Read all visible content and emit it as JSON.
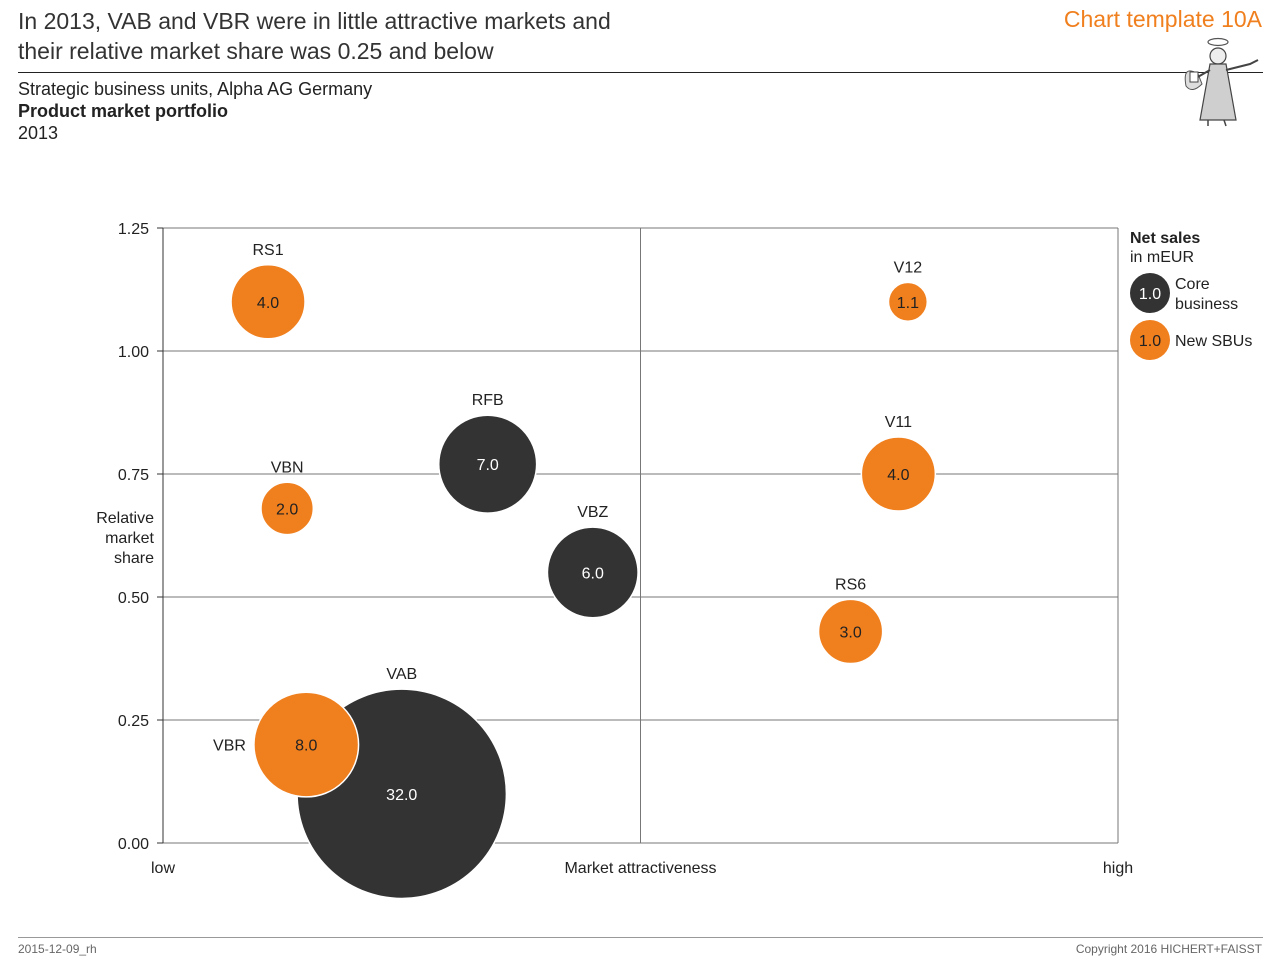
{
  "header": {
    "headline_line1": "In 2013, VAB and VBR were in little attractive markets and",
    "headline_line2": "their relative market share was 0.25 and below",
    "template_tag": "Chart template 10A"
  },
  "subtitle": {
    "line1": "Strategic business units, Alpha AG Germany",
    "line2": "Product market portfolio",
    "line3": "2013"
  },
  "colors": {
    "core": "#333333",
    "new": "#f07f1e"
  },
  "chart_data": {
    "type": "scatter",
    "xlabel": "Market attractiveness",
    "x_tick_labels": [
      "low",
      "high"
    ],
    "xlim": [
      0,
      1
    ],
    "ylabel": [
      "Relative",
      "market",
      "share"
    ],
    "ylim": [
      0,
      1.25
    ],
    "y_ticks": [
      "0.00",
      "0.25",
      "0.50",
      "0.75",
      "1.00",
      "1.25"
    ],
    "grid": true,
    "legend": {
      "title": "Net sales",
      "subtitle": "in mEUR",
      "sample_value": "1.0",
      "entries": [
        {
          "label_lines": [
            "Core",
            "business"
          ],
          "category": "core"
        },
        {
          "label_lines": [
            "New SBUs"
          ],
          "category": "new"
        }
      ]
    },
    "points": [
      {
        "name": "VAB",
        "x": 0.25,
        "y": 0.1,
        "size": 32.0,
        "label": "32.0",
        "category": "core"
      },
      {
        "name": "VBR",
        "x": 0.15,
        "y": 0.2,
        "size": 8.0,
        "label": "8.0",
        "category": "new"
      },
      {
        "name": "RS1",
        "x": 0.11,
        "y": 1.1,
        "size": 4.0,
        "label": "4.0",
        "category": "new"
      },
      {
        "name": "VBN",
        "x": 0.13,
        "y": 0.68,
        "size": 2.0,
        "label": "2.0",
        "category": "new"
      },
      {
        "name": "RFB",
        "x": 0.34,
        "y": 0.77,
        "size": 7.0,
        "label": "7.0",
        "category": "core"
      },
      {
        "name": "VBZ",
        "x": 0.45,
        "y": 0.55,
        "size": 6.0,
        "label": "6.0",
        "category": "core"
      },
      {
        "name": "V12",
        "x": 0.78,
        "y": 1.1,
        "size": 1.1,
        "label": "1.1",
        "category": "new"
      },
      {
        "name": "V11",
        "x": 0.77,
        "y": 0.75,
        "size": 4.0,
        "label": "4.0",
        "category": "new"
      },
      {
        "name": "RS6",
        "x": 0.72,
        "y": 0.43,
        "size": 3.0,
        "label": "3.0",
        "category": "new"
      }
    ]
  },
  "footer": {
    "left": "2015-12-09_rh",
    "right": "Copyright 2016 HICHERT+FAISST"
  }
}
